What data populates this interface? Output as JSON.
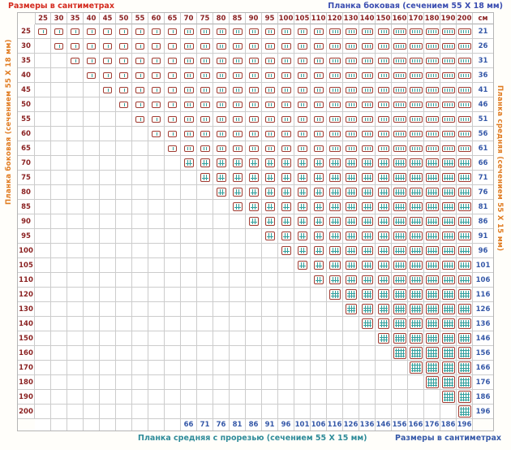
{
  "colors": {
    "title_red": "#d42a1e",
    "header_maroon": "#8b2222",
    "right_bottom_blue": "#3558a8",
    "top_right_indigo": "#3a4db0",
    "bottom_left_teal": "#2e8b99",
    "side_orange": "#e07b20",
    "grid_line": "#cccccc",
    "grid_line_dark": "#aaaaaa",
    "icon_border": "#a03b33",
    "icon_line": "#2f9e9e",
    "background": "#fffefa"
  },
  "labels": {
    "top_left": "Размеры в сантиметрах",
    "top_right": "Планка боковая (сечением 55 X 18 мм)",
    "left_vertical": "Планка боковая (сечением 55 X 18 мм)",
    "right_vertical": "Планка средняя (сечением 55 X 15 мм)",
    "bottom_left": "Планка средняя с прорезью (сечением 55 X 15 мм)",
    "bottom_right": "Размеры в сантиметрах",
    "unit": "см"
  },
  "table": {
    "column_headers": [
      25,
      30,
      35,
      40,
      45,
      50,
      55,
      60,
      65,
      70,
      75,
      80,
      85,
      90,
      95,
      100,
      105,
      110,
      120,
      130,
      140,
      150,
      160,
      170,
      180,
      190,
      200
    ],
    "row_headers": [
      25,
      30,
      35,
      40,
      45,
      50,
      55,
      60,
      65,
      70,
      75,
      80,
      85,
      90,
      95,
      100,
      105,
      110,
      120,
      130,
      140,
      150,
      160,
      170,
      180,
      190,
      200
    ],
    "right_values": [
      21,
      26,
      31,
      36,
      41,
      46,
      51,
      56,
      61,
      66,
      71,
      76,
      81,
      86,
      91,
      96,
      101,
      106,
      116,
      126,
      136,
      146,
      156,
      166,
      176,
      186,
      196
    ],
    "bottom_values": [
      null,
      null,
      null,
      null,
      null,
      null,
      null,
      null,
      null,
      66,
      71,
      76,
      81,
      86,
      91,
      96,
      101,
      106,
      116,
      126,
      136,
      146,
      156,
      166,
      176,
      186,
      196
    ],
    "cell_filled_when": "column >= row",
    "icon_rules": {
      "vertical_lines": [
        {
          "max_size": 65,
          "lines": 1
        },
        {
          "max_size": 110,
          "lines": 2
        },
        {
          "max_size": 150,
          "lines": 3
        },
        {
          "max_size": 200,
          "lines": 4
        }
      ],
      "horizontal_lines": [
        {
          "max_size": 65,
          "lines": 0
        },
        {
          "max_size": 110,
          "lines": 1
        },
        {
          "max_size": 150,
          "lines": 2
        },
        {
          "max_size": 200,
          "lines": 3
        }
      ]
    }
  }
}
